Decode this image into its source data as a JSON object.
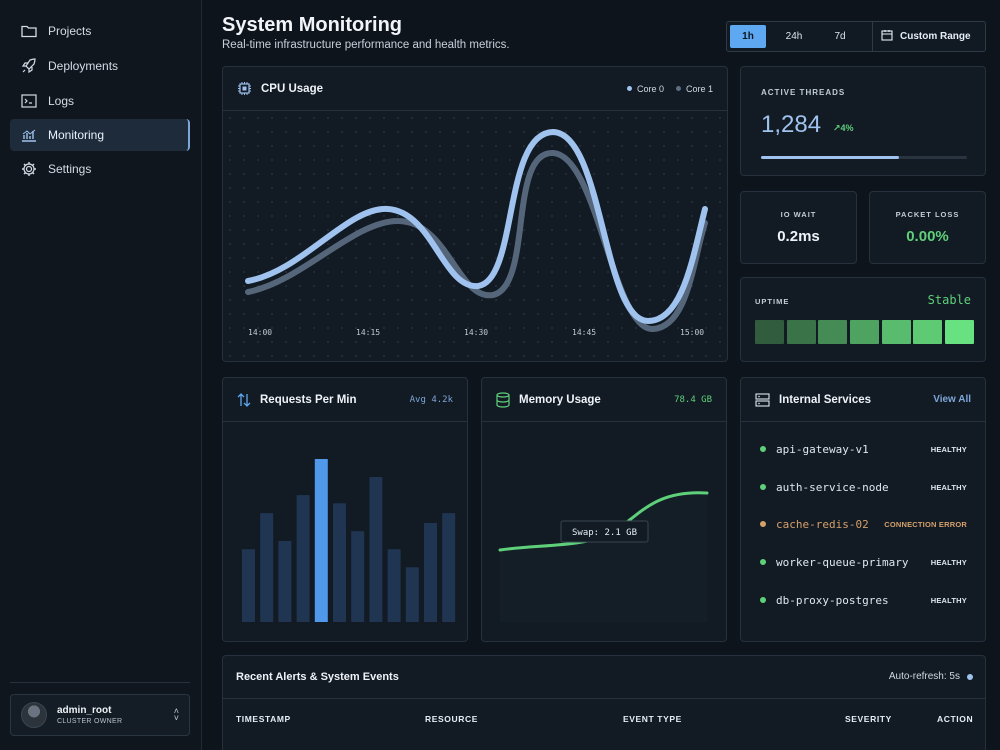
{
  "sidebar": {
    "items": [
      {
        "label": "Projects",
        "icon": "folder-icon"
      },
      {
        "label": "Deployments",
        "icon": "rocket-icon"
      },
      {
        "label": "Logs",
        "icon": "terminal-icon"
      },
      {
        "label": "Monitoring",
        "icon": "chart-icon",
        "active": true
      },
      {
        "label": "Settings",
        "icon": "gear-icon"
      }
    ],
    "user": {
      "name": "admin_root",
      "role": "CLUSTER OWNER"
    }
  },
  "header": {
    "title": "System Monitoring",
    "subtitle": "Real-time infrastructure performance and health metrics.",
    "ranges": [
      "1h",
      "24h",
      "7d"
    ],
    "active_range": "1h",
    "custom_range": "Custom Range"
  },
  "cpu": {
    "title": "CPU Usage",
    "legend": [
      "Core 0",
      "Core 1"
    ],
    "colors": {
      "core0": "#9fc3ee",
      "core1": "#5d6e82"
    }
  },
  "threads": {
    "label": "ACTIVE THREADS",
    "value": "1,284",
    "delta": "4%",
    "progress": 0.67
  },
  "io_wait": {
    "label": "IO WAIT",
    "value": "0.2ms"
  },
  "packet_loss": {
    "label": "PACKET LOSS",
    "value": "0.00%"
  },
  "uptime": {
    "label": "UPTIME",
    "status": "Stable",
    "levels": [
      0.15,
      0.3,
      0.45,
      0.6,
      0.75,
      0.85,
      1.0
    ]
  },
  "requests": {
    "title": "Requests Per Min",
    "meta": "Avg 4.2k"
  },
  "memory": {
    "title": "Memory Usage",
    "meta": "78.4 GB",
    "tooltip": "Swap: 2.1 GB"
  },
  "services": {
    "title": "Internal Services",
    "view_all": "View All",
    "items": [
      {
        "name": "api-gateway-v1",
        "status": "HEALTHY",
        "color": "#5fd07a"
      },
      {
        "name": "auth-service-node",
        "status": "HEALTHY",
        "color": "#5fd07a"
      },
      {
        "name": "cache-redis-02",
        "status": "CONNECTION ERROR",
        "color": "#d4a06a"
      },
      {
        "name": "worker-queue-primary",
        "status": "HEALTHY",
        "color": "#5fd07a"
      },
      {
        "name": "db-proxy-postgres",
        "status": "HEALTHY",
        "color": "#5fd07a"
      }
    ]
  },
  "events": {
    "title": "Recent Alerts & System Events",
    "refresh": "Auto-refresh: 5s",
    "columns": [
      "TIMESTAMP",
      "RESOURCE",
      "EVENT TYPE",
      "SEVERITY",
      "ACTION"
    ]
  },
  "chart_data": [
    {
      "type": "line",
      "title": "CPU Usage",
      "x": [
        "14:00",
        "14:15",
        "14:30",
        "14:45",
        "15:00"
      ],
      "series": [
        {
          "name": "Core 0"
        },
        {
          "name": "Core 1"
        }
      ]
    },
    {
      "type": "bar",
      "title": "Requests Per Min",
      "values": [
        0.45,
        0.67,
        0.5,
        0.78,
        1.0,
        0.73,
        0.56,
        0.89,
        0.45,
        0.34,
        0.61,
        0.67
      ],
      "highlight_index": 4,
      "colors": {
        "bar": "#1f3552",
        "highlight": "#4f98ea"
      }
    },
    {
      "type": "line",
      "title": "Memory Usage",
      "series": [
        {
          "name": "",
          "color": "#5fd07a"
        }
      ]
    }
  ]
}
